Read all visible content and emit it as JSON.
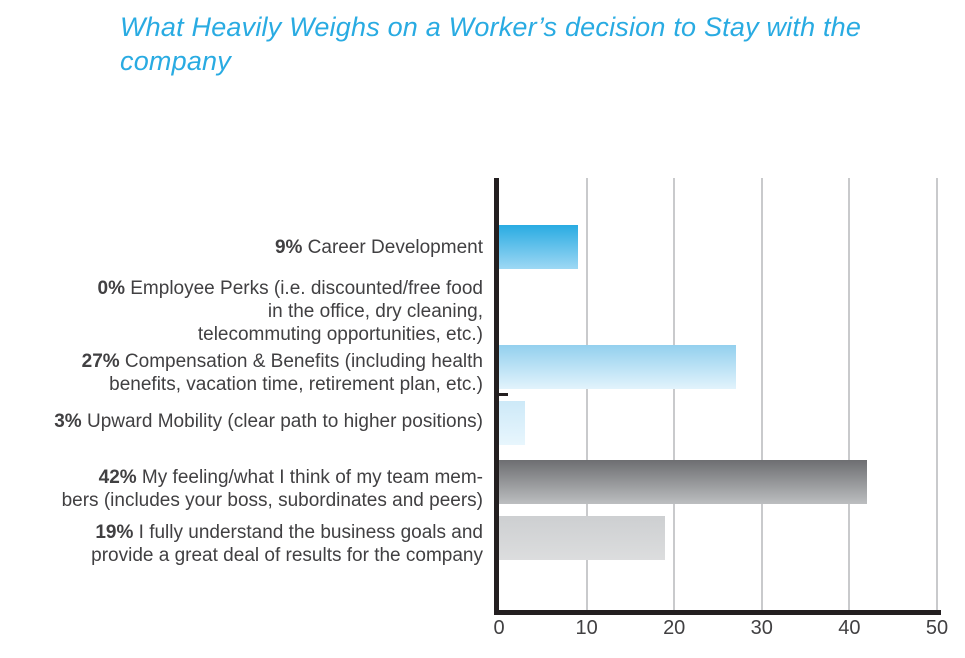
{
  "title": {
    "lines": [
      "What Heavily Weighs on a Worker’s decision to Stay with the",
      "company"
    ],
    "color": "#29abe2"
  },
  "chart_data": {
    "type": "bar",
    "orientation": "horizontal",
    "title": "What Heavily Weighs on a Worker’s decision to Stay with the company",
    "xlim": [
      0,
      50
    ],
    "x_ticks": [
      "0",
      "10",
      "20",
      "30",
      "40",
      "50"
    ],
    "grid": true,
    "legend": "none",
    "axis_color": "#231f20",
    "grid_color": "#c9cacc",
    "label_color": "#414042",
    "categories": [
      {
        "pct": "9%",
        "lines": [
          "Career Development"
        ],
        "value": 9,
        "bar_color_top": "#29abe2",
        "bar_color_bottom": "#9ed8f4"
      },
      {
        "pct": "0%",
        "lines": [
          "Employee Perks (i.e. discounted/free food",
          "in the office, dry cleaning,",
          "telecommuting opportunities, etc.)"
        ],
        "value": 0,
        "bar_color_top": null,
        "bar_color_bottom": null
      },
      {
        "pct": "27%",
        "lines": [
          "Compensation & Benefits (including health",
          "benefits, vacation time, retirement plan, etc.)"
        ],
        "value": 27,
        "bar_color_top": "#93d0ee",
        "bar_color_bottom": "#e2f3fc"
      },
      {
        "pct": "3%",
        "lines": [
          "Upward Mobility (clear path to higher positions)"
        ],
        "value": 3,
        "bar_color_top": "#cde9f8",
        "bar_color_bottom": "#e8f6fd"
      },
      {
        "pct": "42%",
        "lines": [
          "My feeling/what I think of my team mem-",
          "bers (includes your boss, subordinates and peers)"
        ],
        "value": 42,
        "bar_color_top": "#6d6e71",
        "bar_color_bottom": "#bcbec0"
      },
      {
        "pct": "19%",
        "lines": [
          "I fully understand the business goals and",
          "provide a great deal of results for the company"
        ],
        "value": 19,
        "bar_color_top": "#cdcfd1",
        "bar_color_bottom": "#dcddde"
      }
    ]
  }
}
